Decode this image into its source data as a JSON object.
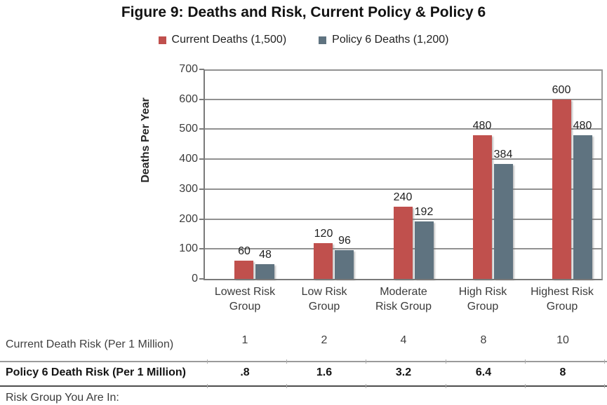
{
  "chart_data": {
    "type": "bar",
    "title": "Figure 9: Deaths and Risk, Current Policy & Policy 6",
    "categories": [
      "Lowest Risk Group",
      "Low Risk Group",
      "Moderate Risk Group",
      "High Risk Group",
      "Highest Risk Group"
    ],
    "category_lines": [
      [
        "Lowest Risk",
        "Group"
      ],
      [
        "Low Risk",
        "Group"
      ],
      [
        "Moderate",
        "Risk Group"
      ],
      [
        "High Risk",
        "Group"
      ],
      [
        "Highest Risk",
        "Group"
      ]
    ],
    "series": [
      {
        "name": "Current Deaths (1,500)",
        "color": "#C0504D",
        "values": [
          60,
          120,
          240,
          480,
          600
        ]
      },
      {
        "name": "Policy 6 Deaths (1,200)",
        "color": "#5F7380",
        "values": [
          48,
          96,
          192,
          384,
          480
        ]
      }
    ],
    "bar_value_labels_shown": true,
    "xlabel": "",
    "ylabel": "Deaths Per Year",
    "ylim": [
      0,
      700
    ],
    "yticks": [
      0,
      100,
      200,
      300,
      400,
      500,
      600,
      700
    ],
    "grid": true,
    "legend_position": "top"
  },
  "risk_table": {
    "rows": [
      {
        "label": "Current Death Risk (Per 1 Million)",
        "bold": false,
        "values": [
          "1",
          "2",
          "4",
          "8",
          "10"
        ]
      },
      {
        "label": "Policy 6 Death Risk (Per 1 Million)",
        "bold": true,
        "values": [
          ".8",
          "1.6",
          "3.2",
          "6.4",
          "8"
        ]
      }
    ],
    "footer_label": "Risk Group You Are In:"
  }
}
